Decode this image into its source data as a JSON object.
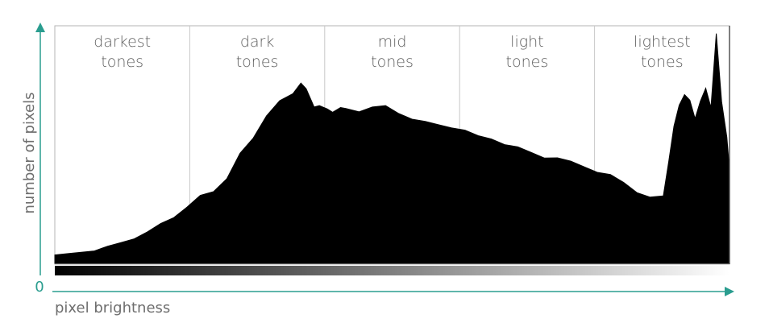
{
  "chart_data": {
    "type": "area",
    "title": "",
    "xlabel": "pixel brightness",
    "ylabel": "number of pixels",
    "origin_label": "0",
    "xlim": [
      0,
      255
    ],
    "ylim": [
      0,
      100
    ],
    "grid": false,
    "legend": "none",
    "zones": [
      {
        "lines": [
          "darkest",
          "tones"
        ]
      },
      {
        "lines": [
          "dark",
          "tones"
        ]
      },
      {
        "lines": [
          "mid",
          "tones"
        ]
      },
      {
        "lines": [
          "light",
          "tones"
        ]
      },
      {
        "lines": [
          "lightest",
          "tones"
        ]
      }
    ],
    "series": [
      {
        "x": [
          0,
          5,
          10,
          15,
          20,
          25,
          30,
          35,
          40,
          45,
          50,
          55,
          60,
          65,
          70,
          75,
          80,
          85,
          90,
          93,
          95,
          98,
          100,
          103,
          105,
          108,
          110,
          115,
          120,
          125,
          130,
          135,
          140,
          145,
          150,
          155,
          160,
          165,
          170,
          175,
          180,
          185,
          190,
          195,
          200,
          205,
          210,
          215,
          220,
          225,
          230,
          232,
          234,
          236,
          238,
          240,
          242,
          244,
          246,
          248,
          250,
          252,
          254,
          255
        ],
        "y": [
          3,
          4,
          5,
          6,
          7,
          9,
          11,
          13,
          17,
          20,
          25,
          29,
          31,
          37,
          47,
          54,
          64,
          71,
          73,
          78,
          76,
          67,
          68,
          67,
          66,
          67,
          67,
          66,
          67,
          68,
          65,
          63,
          61,
          60,
          59,
          57,
          55,
          54,
          52,
          50,
          48,
          46,
          45,
          44,
          42,
          40,
          38,
          35,
          31,
          28,
          29,
          44,
          60,
          68,
          73,
          71,
          62,
          70,
          76,
          68,
          99,
          70,
          55,
          40
        ]
      }
    ],
    "colors": {
      "axis": "#2a9d8f",
      "fill": "#000000",
      "divider": "#c8c8c8",
      "frame": "#b4b4b4"
    }
  }
}
